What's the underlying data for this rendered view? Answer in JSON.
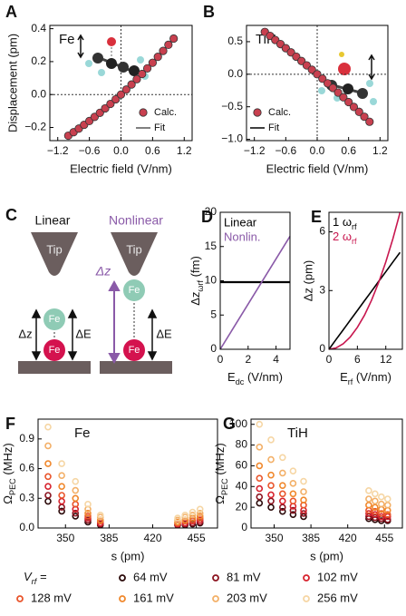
{
  "chart_data": [
    {
      "type": "scatter",
      "panel": "A",
      "annotation": "Fe",
      "xlabel": "Electric field (V/nm)",
      "ylabel": "Displacement (pm)",
      "xlim": [
        -1.35,
        1.35
      ],
      "ylim": [
        -0.28,
        0.42
      ],
      "xticks": [
        {
          "value": -1.2,
          "label": "−1.2"
        },
        {
          "value": -0.6,
          "label": "−0.6"
        },
        {
          "value": 0,
          "label": "0.0"
        },
        0.6,
        1.2
      ],
      "yticks": [
        {
          "value": -0.2,
          "label": "−0.2"
        },
        {
          "value": 0,
          "label": "0.0"
        },
        0.2,
        0.4
      ],
      "zero_lines": true,
      "legend": "lower right",
      "x": [
        -1.0,
        -0.9,
        -0.8,
        -0.7,
        -0.6,
        -0.5,
        -0.4,
        -0.3,
        -0.2,
        -0.1,
        0,
        0.1,
        0.2,
        0.3,
        0.4,
        0.5,
        0.6,
        0.7,
        0.8,
        0.9,
        1.0
      ],
      "series": [
        {
          "name": "Calc.",
          "color": "#c8404f",
          "mode": "markers",
          "marker": "filled",
          "values": [
            -0.25,
            -0.229,
            -0.207,
            -0.184,
            -0.161,
            -0.136,
            -0.111,
            -0.084,
            -0.057,
            -0.029,
            0,
            0.03,
            0.061,
            0.093,
            0.125,
            0.159,
            0.193,
            0.229,
            0.265,
            0.302,
            0.34
          ]
        },
        {
          "name": "Fit",
          "color": "#555555",
          "mode": "line",
          "values": [
            -0.25,
            -0.229,
            -0.207,
            -0.184,
            -0.161,
            -0.136,
            -0.111,
            -0.084,
            -0.057,
            -0.029,
            0,
            0.03,
            0.061,
            0.093,
            0.125,
            0.159,
            0.193,
            0.229,
            0.265,
            0.302,
            0.34
          ]
        }
      ]
    },
    {
      "type": "scatter",
      "panel": "B",
      "annotation": "TiH",
      "xlabel": "Electric field (V/nm)",
      "xlim": [
        -1.35,
        1.35
      ],
      "ylim": [
        -1.02,
        0.75
      ],
      "xticks": [
        {
          "value": -1.2,
          "label": "−1.2"
        },
        {
          "value": -0.6,
          "label": "−0.6"
        },
        {
          "value": 0,
          "label": "0.0"
        },
        0.6,
        1.2
      ],
      "yticks": [
        {
          "value": -1.0,
          "label": "−1.0"
        },
        {
          "value": -0.5,
          "label": "−0.5"
        },
        {
          "value": 0,
          "label": "0.0"
        },
        0.5
      ],
      "zero_lines": true,
      "legend": "lower left",
      "x": [
        -1.0,
        -0.9,
        -0.8,
        -0.7,
        -0.6,
        -0.5,
        -0.4,
        -0.3,
        -0.2,
        -0.1,
        0,
        0.1,
        0.2,
        0.3,
        0.4,
        0.5,
        0.6,
        0.7,
        0.8,
        0.9,
        1.0
      ],
      "series": [
        {
          "name": "Calc.",
          "color": "#c8404f",
          "mode": "markers",
          "marker": "filled",
          "values": [
            0.65,
            0.589,
            0.526,
            0.463,
            0.4,
            0.335,
            0.27,
            0.203,
            0.136,
            0.069,
            0,
            -0.069,
            -0.14,
            -0.211,
            -0.282,
            -0.355,
            -0.428,
            -0.503,
            -0.578,
            -0.653,
            -0.73
          ]
        },
        {
          "name": "Fit",
          "color": "#000000",
          "mode": "line",
          "values": [
            0.65,
            0.589,
            0.526,
            0.463,
            0.4,
            0.335,
            0.27,
            0.203,
            0.136,
            0.069,
            0,
            -0.069,
            -0.14,
            -0.211,
            -0.282,
            -0.355,
            -0.428,
            -0.503,
            -0.578,
            -0.653,
            -0.73
          ]
        }
      ]
    },
    {
      "type": "line",
      "panel": "D",
      "xlabel": {
        "text": "E",
        "sub": "dc",
        "tail": " (V/nm)"
      },
      "ylabel": {
        "text": "Δz",
        "sub": "ωrf",
        "tail": " (fm)"
      },
      "xlim": [
        0,
        5
      ],
      "ylim": [
        0,
        20
      ],
      "xticks": [
        0,
        2,
        4
      ],
      "yticks": [
        0,
        5,
        10,
        15,
        20
      ],
      "legend": "upper left",
      "legend_style": "text",
      "x": [
        0,
        5
      ],
      "series": [
        {
          "name": "Linear",
          "color": "#000000",
          "mode": "line",
          "values": [
            9.8,
            9.8
          ]
        },
        {
          "name": "Nonlin.",
          "color": "#8a5aa8",
          "mode": "line",
          "values": [
            0,
            16.5
          ]
        }
      ]
    },
    {
      "type": "line",
      "panel": "E",
      "xlabel": {
        "text": "E",
        "sub": "rf",
        "tail": " (V/nm)"
      },
      "ylabel": "Δz (pm)",
      "xlim": [
        0,
        15.5
      ],
      "ylim": [
        0,
        7
      ],
      "xticks": [
        0,
        6,
        12
      ],
      "yticks": [
        0,
        3,
        6
      ],
      "legend": "upper left",
      "legend_style": "text",
      "x": [
        0,
        1.5,
        3,
        4.5,
        6,
        7.5,
        9,
        10.5,
        12,
        13.5,
        15
      ],
      "series": [
        {
          "name": {
            "text": "1 ω",
            "sub": "rf"
          },
          "color": "#000000",
          "mode": "line",
          "values": [
            0,
            0.5,
            0.99,
            1.49,
            1.98,
            2.48,
            2.97,
            3.47,
            3.96,
            4.46,
            4.95
          ]
        },
        {
          "name": {
            "text": "2 ω",
            "sub": "rf"
          },
          "color": "#c8174f",
          "mode": "line",
          "values": [
            0,
            0.07,
            0.28,
            0.63,
            1.12,
            1.74,
            2.51,
            3.42,
            4.46,
            5.65,
            6.98
          ]
        }
      ]
    },
    {
      "type": "scatter",
      "panel": "F",
      "annotation": "Fe",
      "xlabel": "s (pm)",
      "ylabel": {
        "text": "Ω",
        "sub": "PEC",
        "tail": " (MHz)"
      },
      "xlim": [
        328,
        472
      ],
      "ylim": [
        0,
        1.1
      ],
      "xticks": [
        350,
        385,
        420,
        455
      ],
      "yticks": [
        {
          "value": 0,
          "label": "0.0"
        },
        0.3,
        0.6,
        0.9
      ],
      "legend": "below",
      "legend_title": {
        "text": "V",
        "sub": "rf",
        "tail": " ="
      },
      "x": [
        336,
        347,
        358,
        368,
        378,
        440,
        446,
        452,
        458
      ],
      "series": [
        {
          "name": "64 mV",
          "color": "#2b0a0a",
          "mode": "markers",
          "marker": "open",
          "values": [
            0.27,
            0.17,
            0.12,
            0.06,
            0.03,
            0.03,
            0.03,
            0.04,
            0.05
          ]
        },
        {
          "name": "81 mV",
          "color": "#8c1420",
          "mode": "markers",
          "marker": "open",
          "values": [
            0.33,
            0.21,
            0.15,
            0.08,
            0.04,
            0.03,
            0.04,
            0.05,
            0.06
          ]
        },
        {
          "name": "102 mV",
          "color": "#d7232e",
          "mode": "markers",
          "marker": "open",
          "values": [
            0.42,
            0.27,
            0.19,
            0.1,
            0.05,
            0.04,
            0.05,
            0.07,
            0.08
          ]
        },
        {
          "name": "128 mV",
          "color": "#e9552c",
          "mode": "markers",
          "marker": "open",
          "values": [
            0.52,
            0.33,
            0.24,
            0.12,
            0.07,
            0.05,
            0.07,
            0.08,
            0.1
          ]
        },
        {
          "name": "161 mV",
          "color": "#f0882d",
          "mode": "markers",
          "marker": "open",
          "values": [
            0.65,
            0.42,
            0.3,
            0.15,
            0.08,
            0.06,
            0.08,
            0.1,
            0.12
          ]
        },
        {
          "name": "203 mV",
          "color": "#f3b068",
          "mode": "markers",
          "marker": "open",
          "values": [
            0.83,
            0.53,
            0.38,
            0.19,
            0.11,
            0.08,
            0.11,
            0.13,
            0.15
          ]
        },
        {
          "name": "256 mV",
          "color": "#f6d6a4",
          "mode": "markers",
          "marker": "open",
          "values": [
            1.02,
            0.65,
            0.47,
            0.24,
            0.13,
            0.1,
            0.13,
            0.16,
            0.19
          ]
        }
      ]
    },
    {
      "type": "scatter",
      "panel": "G",
      "annotation": "TiH",
      "xlabel": "s (pm)",
      "ylabel": {
        "text": "Ω",
        "sub": "PEC",
        "tail": " (MHz)"
      },
      "xlim": [
        328,
        472
      ],
      "ylim": [
        0,
        105
      ],
      "xticks": [
        350,
        385,
        420,
        455
      ],
      "yticks": [
        0,
        20,
        40,
        60,
        80,
        100
      ],
      "x": [
        336,
        347,
        358,
        368,
        378,
        440,
        446,
        452,
        458
      ],
      "series": [
        {
          "color": "#2b0a0a",
          "mode": "markers",
          "marker": "open",
          "values": [
            24,
            20,
            16,
            13,
            11,
            9,
            8,
            7,
            7
          ]
        },
        {
          "color": "#8c1420",
          "mode": "markers",
          "marker": "open",
          "values": [
            30,
            26,
            20,
            17,
            14,
            11,
            10,
            9,
            8
          ]
        },
        {
          "color": "#d7232e",
          "mode": "markers",
          "marker": "open",
          "values": [
            38,
            32,
            26,
            21,
            17,
            14,
            13,
            11,
            11
          ]
        },
        {
          "color": "#e9552c",
          "mode": "markers",
          "marker": "open",
          "values": [
            48,
            41,
            33,
            26,
            22,
            17,
            16,
            14,
            13
          ]
        },
        {
          "color": "#f0882d",
          "mode": "markers",
          "marker": "open",
          "values": [
            60,
            51,
            41,
            33,
            27,
            22,
            20,
            18,
            17
          ]
        },
        {
          "color": "#f3b068",
          "mode": "markers",
          "marker": "open",
          "values": [
            78,
            66,
            53,
            43,
            35,
            28,
            26,
            23,
            22
          ]
        },
        {
          "color": "#f6d6a4",
          "mode": "markers",
          "marker": "open",
          "values": [
            100,
            85,
            68,
            55,
            45,
            36,
            33,
            30,
            28
          ]
        }
      ]
    }
  ],
  "diagram": {
    "panel": "C",
    "left_title": "Linear",
    "right_title": "Nonlinear",
    "tips": [
      "Tip",
      "Tip"
    ],
    "atoms": [
      "Fe",
      "Fe",
      "Fe",
      "Fe"
    ],
    "arrows": [
      "Δz",
      "ΔE",
      "Δz",
      "ΔE"
    ]
  }
}
